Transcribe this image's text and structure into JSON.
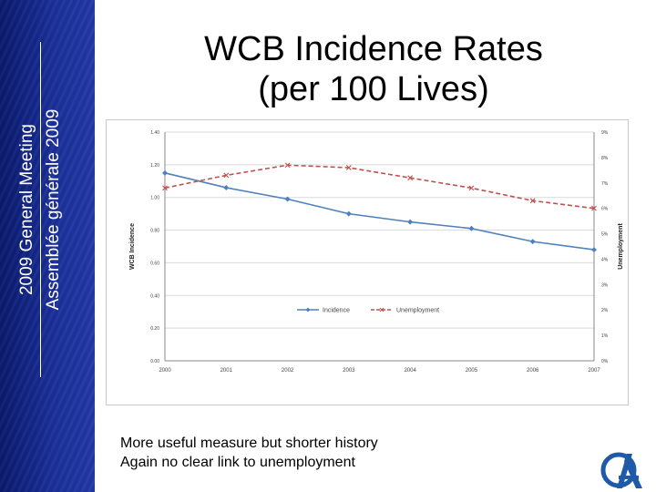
{
  "sidebar": {
    "line1": "2009 General Meeting",
    "line2": "Assemblée générale 2009"
  },
  "title": {
    "line1": "WCB Incidence Rates",
    "line2": "(per 100 Lives)"
  },
  "notes": [
    "More useful measure but shorter history",
    " Again no clear link to unemployment"
  ],
  "colors": {
    "sidebar": "#1a2f9a",
    "incidence": "#4f81bd",
    "unemployment": "#c0504d",
    "logo": "#1e5aa8"
  },
  "chart_data": {
    "type": "line",
    "categories": [
      "2000",
      "2001",
      "2002",
      "2003",
      "2004",
      "2005",
      "2006",
      "2007"
    ],
    "series": [
      {
        "name": "Incidence",
        "axis": "left",
        "color": "#4f81bd",
        "values": [
          1.15,
          1.06,
          0.99,
          0.9,
          0.85,
          0.81,
          0.73,
          0.68
        ]
      },
      {
        "name": "Unemployment",
        "axis": "right",
        "color": "#c0504d",
        "dashed": true,
        "values": [
          6.8,
          7.3,
          7.7,
          7.6,
          7.2,
          6.8,
          6.3,
          6.0
        ]
      }
    ],
    "ylabel": "WCB Incidence",
    "y2label": "Unemployment",
    "ylim": [
      0,
      1.4
    ],
    "y2lim": [
      0,
      9
    ],
    "yticks": [
      "0.00",
      "0.20",
      "0.40",
      "0.60",
      "0.80",
      "1.00",
      "1.20",
      "1.40"
    ],
    "y2ticks": [
      "0%",
      "1%",
      "2%",
      "3%",
      "4%",
      "5%",
      "6%",
      "7%",
      "8%",
      "9%"
    ],
    "grid": true,
    "legend": "center"
  }
}
